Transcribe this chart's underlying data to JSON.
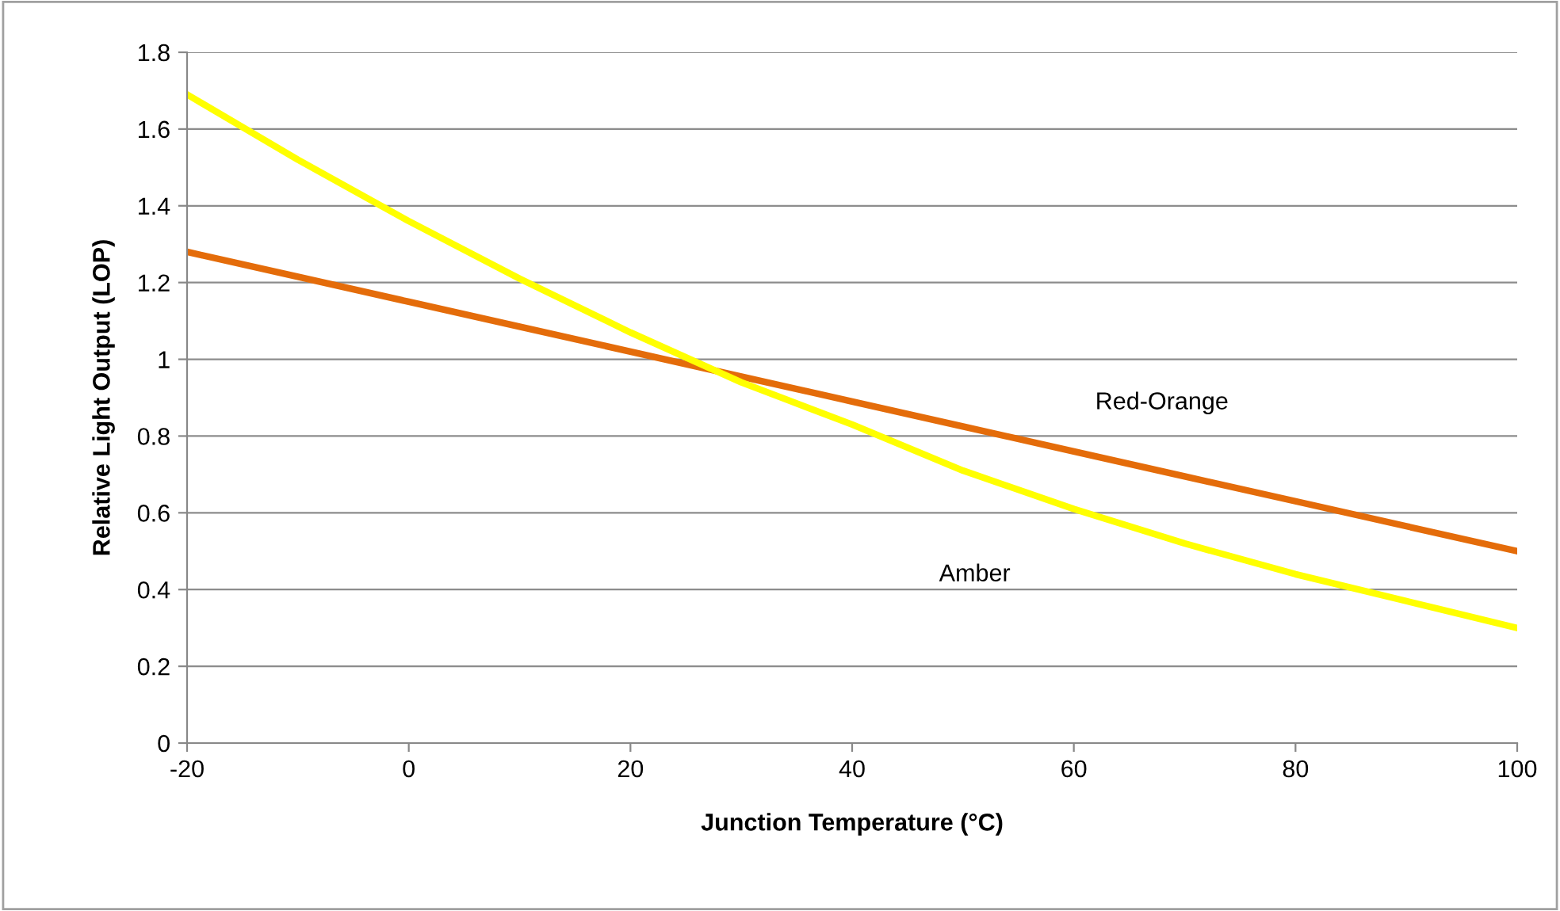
{
  "chart_data": {
    "type": "line",
    "xlabel": "Junction Temperature (°C)",
    "ylabel": "Relative Light Output (LOP)",
    "x": [
      -20,
      -10,
      0,
      10,
      20,
      30,
      40,
      50,
      60,
      70,
      80,
      90,
      100
    ],
    "series": [
      {
        "name": "Red-Orange",
        "color": "#e46c0a",
        "values": [
          1.28,
          1.215,
          1.15,
          1.085,
          1.02,
          0.955,
          0.89,
          0.825,
          0.76,
          0.695,
          0.63,
          0.565,
          0.5
        ]
      },
      {
        "name": "Amber",
        "color": "#ffff00",
        "values": [
          1.69,
          1.52,
          1.36,
          1.21,
          1.07,
          0.94,
          0.83,
          0.71,
          0.61,
          0.52,
          0.44,
          0.37,
          0.3
        ]
      }
    ],
    "xlim": [
      -20,
      100
    ],
    "xticks": [
      -20,
      0,
      20,
      40,
      60,
      80,
      100
    ],
    "ylim": [
      0,
      1.8
    ],
    "yticks": [
      0,
      0.2,
      0.4,
      0.6,
      0.8,
      1,
      1.2,
      1.4,
      1.6,
      1.8
    ],
    "grid": "y",
    "legend": false,
    "marker": "none",
    "line_style": "solid"
  }
}
